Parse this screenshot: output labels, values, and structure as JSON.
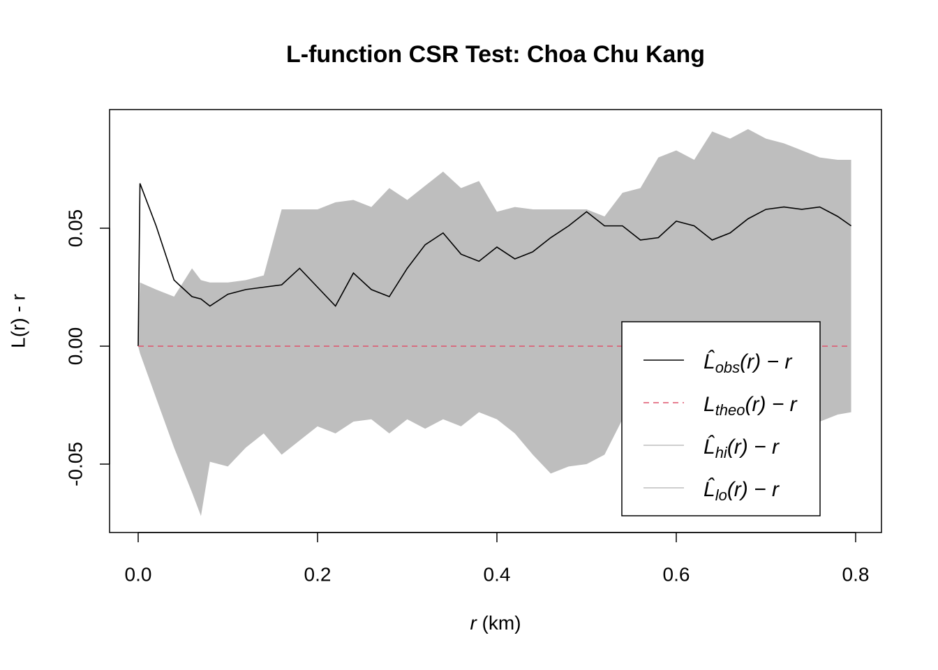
{
  "chart_data": {
    "type": "envelope",
    "title": "L-function CSR Test: Choa Chu Kang",
    "xlabel": "r (km)",
    "ylabel": "L(r) - r",
    "x": [
      0,
      0.002,
      0.02,
      0.04,
      0.06,
      0.07,
      0.08,
      0.1,
      0.12,
      0.14,
      0.16,
      0.18,
      0.2,
      0.22,
      0.24,
      0.26,
      0.28,
      0.3,
      0.32,
      0.34,
      0.36,
      0.38,
      0.4,
      0.42,
      0.44,
      0.46,
      0.48,
      0.5,
      0.52,
      0.54,
      0.56,
      0.58,
      0.6,
      0.62,
      0.64,
      0.66,
      0.68,
      0.7,
      0.72,
      0.74,
      0.76,
      0.78,
      0.795
    ],
    "series": [
      {
        "name": "L̂obs(r) − r",
        "color": "#000000",
        "linestyle": "solid",
        "values": [
          0,
          0.069,
          0.051,
          0.028,
          0.021,
          0.02,
          0.017,
          0.022,
          0.024,
          0.025,
          0.026,
          0.033,
          0.025,
          0.017,
          0.031,
          0.024,
          0.021,
          0.033,
          0.043,
          0.048,
          0.039,
          0.036,
          0.042,
          0.037,
          0.04,
          0.046,
          0.051,
          0.057,
          0.051,
          0.051,
          0.045,
          0.046,
          0.053,
          0.051,
          0.045,
          0.048,
          0.054,
          0.058,
          0.059,
          0.058,
          0.059,
          0.055,
          0.051
        ]
      },
      {
        "name": "Ltheo(r) − r",
        "color": "#DF536B",
        "linestyle": "dashed",
        "values": [
          0,
          0,
          0,
          0,
          0,
          0,
          0,
          0,
          0,
          0,
          0,
          0,
          0,
          0,
          0,
          0,
          0,
          0,
          0,
          0,
          0,
          0,
          0,
          0,
          0,
          0,
          0,
          0,
          0,
          0,
          0,
          0,
          0,
          0,
          0,
          0,
          0,
          0,
          0,
          0,
          0,
          0,
          0
        ]
      },
      {
        "name": "L̂hi(r) − r",
        "color": "#bebebe",
        "linestyle": "solid",
        "values": [
          0,
          0.027,
          0.024,
          0.021,
          0.033,
          0.028,
          0.027,
          0.027,
          0.028,
          0.03,
          0.058,
          0.058,
          0.058,
          0.061,
          0.062,
          0.059,
          0.067,
          0.062,
          0.068,
          0.074,
          0.067,
          0.07,
          0.057,
          0.059,
          0.058,
          0.058,
          0.058,
          0.058,
          0.055,
          0.065,
          0.067,
          0.08,
          0.083,
          0.079,
          0.091,
          0.088,
          0.092,
          0.088,
          0.086,
          0.083,
          0.08,
          0.079,
          0.079
        ]
      },
      {
        "name": "L̂lo(r) − r",
        "color": "#bebebe",
        "linestyle": "solid",
        "values": [
          0,
          -0.003,
          -0.022,
          -0.043,
          -0.062,
          -0.072,
          -0.049,
          -0.051,
          -0.043,
          -0.037,
          -0.046,
          -0.04,
          -0.034,
          -0.037,
          -0.032,
          -0.031,
          -0.037,
          -0.031,
          -0.035,
          -0.031,
          -0.034,
          -0.028,
          -0.031,
          -0.037,
          -0.046,
          -0.054,
          -0.051,
          -0.05,
          -0.046,
          -0.031,
          -0.028,
          -0.031,
          -0.029,
          -0.032,
          -0.031,
          -0.028,
          -0.031,
          -0.028,
          -0.025,
          -0.031,
          -0.032,
          -0.029,
          -0.028
        ]
      }
    ],
    "xlim": [
      -0.0319,
      0.8288
    ],
    "ylim": [
      -0.079,
      0.1003
    ],
    "xticks": [
      {
        "value": 0,
        "label": "0.0"
      },
      0.2,
      0.4,
      0.6,
      0.8
    ],
    "yticks": [
      -0.05,
      {
        "value": 0,
        "label": "0.00"
      },
      0.05
    ],
    "legend": "bottomright"
  }
}
